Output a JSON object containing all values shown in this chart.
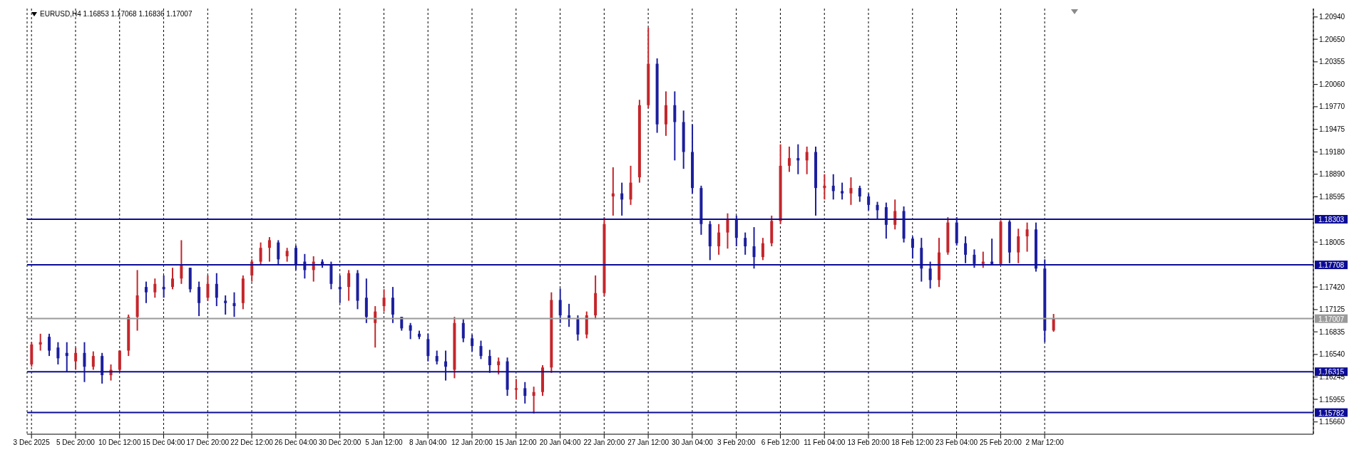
{
  "chart_data": {
    "type": "candlestick",
    "title": "EURUSD,H4 1.16853 1.17068 1.16836 1.17007",
    "categories": [
      "3 Dec 2025",
      null,
      null,
      null,
      null,
      "5 Dec 20:00",
      null,
      null,
      null,
      null,
      "10 Dec 12:00",
      null,
      null,
      null,
      null,
      "15 Dec 04:00",
      null,
      null,
      null,
      null,
      "17 Dec 20:00",
      null,
      null,
      null,
      null,
      "22 Dec 12:00",
      null,
      null,
      null,
      null,
      "26 Dec 04:00",
      null,
      null,
      null,
      null,
      "30 Dec 20:00",
      null,
      null,
      null,
      null,
      "5 Jan 12:00",
      null,
      null,
      null,
      null,
      "8 Jan 04:00",
      null,
      null,
      null,
      null,
      "12 Jan 20:00",
      null,
      null,
      null,
      null,
      "15 Jan 12:00",
      null,
      null,
      null,
      null,
      "20 Jan 04:00",
      null,
      null,
      null,
      null,
      "22 Jan 20:00",
      null,
      null,
      null,
      null,
      "27 Jan 12:00",
      null,
      null,
      null,
      null,
      "30 Jan 04:00",
      null,
      null,
      null,
      null,
      "3 Feb 20:00",
      null,
      null,
      null,
      null,
      "6 Feb 12:00",
      null,
      null,
      null,
      null,
      "11 Feb 04:00",
      null,
      null,
      null,
      null,
      "13 Feb 20:00",
      null,
      null,
      null,
      null,
      "18 Feb 12:00",
      null,
      null,
      null,
      null,
      "23 Feb 04:00",
      null,
      null,
      null,
      null,
      "25 Feb 20:00",
      null,
      null,
      null,
      null,
      "2 Mar 12:00",
      null,
      null,
      null,
      null,
      null,
      null,
      null,
      null,
      null,
      null,
      null,
      null,
      null,
      null,
      null,
      null,
      null,
      null,
      null,
      null,
      null,
      null,
      null,
      null,
      null,
      null,
      null,
      null,
      null,
      null
    ],
    "ohlc": [
      [
        1.1641,
        1.167,
        1.1638,
        1.1667
      ],
      [
        1.1667,
        1.1681,
        1.1659,
        1.167
      ],
      [
        1.1677,
        1.1681,
        1.1652,
        1.1659
      ],
      [
        1.1663,
        1.167,
        1.1641,
        1.1649
      ],
      [
        1.1656,
        1.167,
        1.1631,
        1.1652
      ],
      [
        1.1645,
        1.1663,
        1.1634,
        1.1656
      ],
      [
        1.1656,
        1.167,
        1.1618,
        1.1638
      ],
      [
        1.1638,
        1.1658,
        1.1634,
        1.1652
      ],
      [
        1.1652,
        1.1656,
        1.1616,
        1.1627
      ],
      [
        1.1627,
        1.1641,
        1.162,
        1.1634
      ],
      [
        1.1634,
        1.1659,
        1.1631,
        1.1659
      ],
      [
        1.1659,
        1.1706,
        1.1652,
        1.1703
      ],
      [
        1.1703,
        1.1764,
        1.1685,
        1.1731
      ],
      [
        1.1742,
        1.1749,
        1.1721,
        1.1735
      ],
      [
        1.1735,
        1.1753,
        1.1728,
        1.1746
      ],
      [
        1.1742,
        1.1757,
        1.1728,
        1.1739
      ],
      [
        1.1742,
        1.1767,
        1.1739,
        1.1753
      ],
      [
        1.1753,
        1.1803,
        1.1746,
        1.1771
      ],
      [
        1.1767,
        1.1767,
        1.1735,
        1.1739
      ],
      [
        1.1742,
        1.1749,
        1.1704,
        1.1721
      ],
      [
        1.1728,
        1.1757,
        1.1724,
        1.1746
      ],
      [
        1.1746,
        1.176,
        1.1717,
        1.1728
      ],
      [
        1.1724,
        1.1731,
        1.1706,
        1.1721
      ],
      [
        1.1721,
        1.1735,
        1.1703,
        1.1717
      ],
      [
        1.1721,
        1.1757,
        1.1713,
        1.1753
      ],
      [
        1.1757,
        1.1778,
        1.1749,
        1.1775
      ],
      [
        1.1775,
        1.18,
        1.1771,
        1.1793
      ],
      [
        1.1793,
        1.1807,
        1.1775,
        1.1803
      ],
      [
        1.18,
        1.1803,
        1.1771,
        1.1778
      ],
      [
        1.1782,
        1.1793,
        1.1775,
        1.1789
      ],
      [
        1.1793,
        1.1796,
        1.1764,
        1.1771
      ],
      [
        1.1775,
        1.1785,
        1.1753,
        1.1764
      ],
      [
        1.1764,
        1.1782,
        1.1749,
        1.1775
      ],
      [
        1.1775,
        1.1778,
        1.1767,
        1.1771
      ],
      [
        1.1771,
        1.1775,
        1.1739,
        1.1746
      ],
      [
        1.1742,
        1.1757,
        1.1721,
        1.1739
      ],
      [
        1.1742,
        1.1764,
        1.1724,
        1.176
      ],
      [
        1.176,
        1.1764,
        1.1713,
        1.1724
      ],
      [
        1.1728,
        1.1753,
        1.1695,
        1.1703
      ],
      [
        1.1695,
        1.1717,
        1.1663,
        1.171
      ],
      [
        1.1717,
        1.1739,
        1.171,
        1.1728
      ],
      [
        1.1728,
        1.1742,
        1.1695,
        1.1706
      ],
      [
        1.1703,
        1.1703,
        1.1685,
        1.1688
      ],
      [
        1.1692,
        1.1695,
        1.1674,
        1.1685
      ],
      [
        1.1681,
        1.1685,
        1.1674,
        1.1677
      ],
      [
        1.1674,
        1.1681,
        1.1645,
        1.1652
      ],
      [
        1.1652,
        1.1659,
        1.1641,
        1.1645
      ],
      [
        1.1645,
        1.1659,
        1.162,
        1.1638
      ],
      [
        1.1634,
        1.1703,
        1.1623,
        1.1695
      ],
      [
        1.1695,
        1.17,
        1.167,
        1.1675
      ],
      [
        1.1675,
        1.168,
        1.1658,
        1.1665
      ],
      [
        1.1665,
        1.1672,
        1.1648,
        1.1652
      ],
      [
        1.1652,
        1.166,
        1.163,
        1.164
      ],
      [
        1.164,
        1.165,
        1.1628,
        1.1645
      ],
      [
        1.1645,
        1.165,
        1.16,
        1.1608
      ],
      [
        1.1608,
        1.1622,
        1.1595,
        1.161
      ],
      [
        1.161,
        1.1618,
        1.159,
        1.16
      ],
      [
        1.16,
        1.1612,
        1.1577,
        1.1605
      ],
      [
        1.1605,
        1.164,
        1.16,
        1.1637
      ],
      [
        1.1637,
        1.1735,
        1.163,
        1.1725
      ],
      [
        1.1725,
        1.174,
        1.1695,
        1.1705
      ],
      [
        1.1705,
        1.172,
        1.169,
        1.17
      ],
      [
        1.17,
        1.1705,
        1.1672,
        1.168
      ],
      [
        1.168,
        1.171,
        1.1675,
        1.1705
      ],
      [
        1.1705,
        1.1757,
        1.17,
        1.1734
      ],
      [
        1.1734,
        1.1833,
        1.173,
        1.1824
      ],
      [
        1.186,
        1.1898,
        1.1835,
        1.1864
      ],
      [
        1.1864,
        1.1878,
        1.1835,
        1.1856
      ],
      [
        1.1856,
        1.19,
        1.1849,
        1.1878
      ],
      [
        1.1885,
        1.1986,
        1.1878,
        1.1979
      ],
      [
        1.1979,
        1.208,
        1.1975,
        1.2033
      ],
      [
        1.2033,
        1.204,
        1.1943,
        1.1954
      ],
      [
        1.1954,
        1.1997,
        1.1939,
        1.1979
      ],
      [
        1.1979,
        1.1997,
        1.1907,
        1.1957
      ],
      [
        1.1957,
        1.1972,
        1.1896,
        1.1918
      ],
      [
        1.1918,
        1.1954,
        1.1864,
        1.1871
      ],
      [
        1.1871,
        1.1874,
        1.181,
        1.1824
      ],
      [
        1.1824,
        1.1828,
        1.1777,
        1.1795
      ],
      [
        1.1795,
        1.1824,
        1.1784,
        1.1813
      ],
      [
        1.1813,
        1.1838,
        1.1792,
        1.1831
      ],
      [
        1.1831,
        1.1835,
        1.1795,
        1.1806
      ],
      [
        1.1806,
        1.1813,
        1.1784,
        1.1795
      ],
      [
        1.1795,
        1.182,
        1.1766,
        1.1781
      ],
      [
        1.1781,
        1.1806,
        1.1777,
        1.1799
      ],
      [
        1.1799,
        1.1835,
        1.1795,
        1.1828
      ],
      [
        1.1828,
        1.1928,
        1.1824,
        1.19
      ],
      [
        1.19,
        1.1925,
        1.1892,
        1.191
      ],
      [
        1.191,
        1.1928,
        1.1889,
        1.1907
      ],
      [
        1.1907,
        1.1925,
        1.1889,
        1.1918
      ],
      [
        1.1918,
        1.1925,
        1.1835,
        1.1871
      ],
      [
        1.1871,
        1.1889,
        1.1856,
        1.1874
      ],
      [
        1.1874,
        1.1889,
        1.1856,
        1.1867
      ],
      [
        1.1867,
        1.1878,
        1.1856,
        1.1864
      ],
      [
        1.1864,
        1.1885,
        1.1849,
        1.1871
      ],
      [
        1.1871,
        1.1874,
        1.1853,
        1.186
      ],
      [
        1.186,
        1.1864,
        1.1842,
        1.1849
      ],
      [
        1.1849,
        1.1853,
        1.1831,
        1.1842
      ],
      [
        1.1846,
        1.1852,
        1.1805,
        1.1823
      ],
      [
        1.1823,
        1.1856,
        1.1817,
        1.1841
      ],
      [
        1.1841,
        1.1847,
        1.18,
        1.1805
      ],
      [
        1.1805,
        1.1808,
        1.1779,
        1.1793
      ],
      [
        1.1793,
        1.1806,
        1.1749,
        1.1766
      ],
      [
        1.1766,
        1.1775,
        1.174,
        1.1751
      ],
      [
        1.1751,
        1.1806,
        1.1742,
        1.1787
      ],
      [
        1.1787,
        1.1833,
        1.1784,
        1.1826
      ],
      [
        1.1826,
        1.1833,
        1.1796,
        1.1799
      ],
      [
        1.1799,
        1.1808,
        1.1773,
        1.1784
      ],
      [
        1.1784,
        1.1791,
        1.1767,
        1.1772
      ],
      [
        1.1772,
        1.1788,
        1.1767,
        1.1775
      ],
      [
        1.1775,
        1.1805,
        1.177,
        1.1772
      ],
      [
        1.1772,
        1.1829,
        1.177,
        1.1827
      ],
      [
        1.1827,
        1.1829,
        1.1773,
        1.1787
      ],
      [
        1.1787,
        1.1818,
        1.1773,
        1.1808
      ],
      [
        1.1808,
        1.1826,
        1.1788,
        1.1817
      ],
      [
        1.1817,
        1.1826,
        1.1762,
        1.1766
      ],
      [
        1.1766,
        1.1778,
        1.167,
        1.1685
      ],
      [
        1.16853,
        1.17068,
        1.16836,
        1.17007
      ],
      null,
      null,
      null,
      null,
      null,
      null,
      null,
      null,
      null,
      null,
      null,
      null,
      null,
      null,
      null,
      null,
      null,
      null,
      null,
      null,
      null,
      null,
      null,
      null,
      null,
      null,
      null,
      null,
      null
    ],
    "colors": [
      "#c4262b",
      "#c4262b",
      "#1c1f9c",
      "#1c1f9c",
      "#1c1f9c",
      "#c4262b",
      "#1c1f9c",
      "#c4262b",
      "#1c1f9c",
      "#c4262b",
      "#c4262b",
      "#c4262b",
      "#c4262b",
      "#1c1f9c",
      "#c4262b",
      "#1c1f9c",
      "#c4262b",
      "#c4262b",
      "#1c1f9c",
      "#1c1f9c",
      "#c4262b",
      "#1c1f9c",
      "#1c1f9c",
      "#1c1f9c",
      "#c4262b",
      "#c4262b",
      "#c4262b",
      "#c4262b",
      "#1c1f9c",
      "#c4262b",
      "#1c1f9c",
      "#1c1f9c",
      "#c4262b",
      "#1c1f9c",
      "#1c1f9c",
      "#1c1f9c",
      "#c4262b",
      "#1c1f9c",
      "#1c1f9c",
      "#c4262b",
      "#c4262b",
      "#1c1f9c",
      "#1c1f9c",
      "#1c1f9c",
      "#1c1f9c",
      "#1c1f9c",
      "#1c1f9c",
      "#1c1f9c",
      "#c4262b",
      "#1c1f9c",
      "#1c1f9c",
      "#1c1f9c",
      "#1c1f9c",
      "#c4262b",
      "#1c1f9c",
      "#c4262b",
      "#1c1f9c",
      "#c4262b",
      "#c4262b",
      "#c4262b",
      "#1c1f9c",
      "#1c1f9c",
      "#1c1f9c",
      "#c4262b",
      "#c4262b",
      "#c4262b",
      "#c4262b",
      "#1c1f9c",
      "#c4262b",
      "#c4262b",
      "#c4262b",
      "#1c1f9c",
      "#c4262b",
      "#1c1f9c",
      "#1c1f9c",
      "#1c1f9c",
      "#1c1f9c",
      "#1c1f9c",
      "#c4262b",
      "#c4262b",
      "#1c1f9c",
      "#1c1f9c",
      "#1c1f9c",
      "#c4262b",
      "#c4262b",
      "#c4262b",
      "#c4262b",
      "#1c1f9c",
      "#c4262b",
      "#1c1f9c",
      "#c4262b",
      "#1c1f9c",
      "#1c1f9c",
      "#c4262b",
      "#1c1f9c",
      "#1c1f9c",
      "#1c1f9c",
      "#1c1f9c",
      "#c4262b",
      "#1c1f9c",
      "#1c1f9c",
      "#1c1f9c",
      "#1c1f9c",
      "#c4262b",
      "#c4262b",
      "#1c1f9c",
      "#1c1f9c",
      "#1c1f9c",
      "#c4262b",
      "#1c1f9c",
      "#c4262b",
      "#1c1f9c",
      "#c4262b",
      "#c4262b",
      "#1c1f9c",
      "#1c1f9c",
      "#c4262b",
      null,
      null,
      null,
      null,
      null,
      null,
      null,
      null,
      null,
      null,
      null,
      null,
      null,
      null,
      null,
      null,
      null,
      null,
      null,
      null,
      null,
      null,
      null,
      null,
      null,
      null,
      null,
      null,
      null
    ],
    "ylim": [
      1.155,
      1.2105
    ],
    "yticks": [
      {
        "value": 1.2094,
        "label": "1.20940"
      },
      {
        "value": 1.2065,
        "label": "1.20650"
      },
      1.20355,
      {
        "value": 1.2006,
        "label": "1.20060"
      },
      {
        "value": 1.1977,
        "label": "1.19770"
      },
      1.19475,
      {
        "value": 1.1918,
        "label": "1.19180"
      },
      {
        "value": 1.1889,
        "label": "1.18890"
      },
      1.18595,
      1.18005,
      {
        "value": 1.1742,
        "label": "1.17420"
      },
      1.17125,
      1.16835,
      {
        "value": 1.1654,
        "label": "1.16540"
      },
      1.16245,
      1.15955,
      {
        "value": 1.1566,
        "label": "1.15660"
      }
    ],
    "ref_lines": [
      {
        "axis": "y",
        "value": 1.18303,
        "label": "1.18303",
        "color": "#0c0c96"
      },
      {
        "axis": "y",
        "value": 1.17708,
        "label": "1.17708",
        "color": "#0c0c96"
      },
      {
        "axis": "y",
        "value": 1.17007,
        "label": "1.17007",
        "color": "#9a9a9a"
      },
      {
        "axis": "y",
        "value": 1.16315,
        "label": "1.16315",
        "color": "#0c0c96"
      },
      {
        "axis": "y",
        "value": 1.15782,
        "label": "1.15782",
        "color": "#0c0c96"
      }
    ],
    "grid": "x"
  }
}
